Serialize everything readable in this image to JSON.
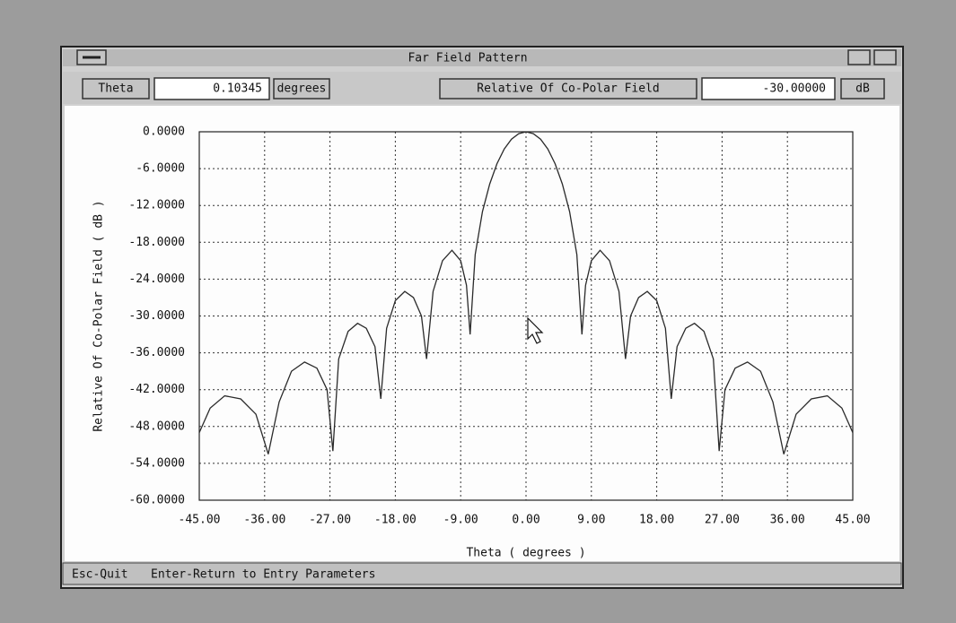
{
  "window": {
    "title": "Far Field Pattern"
  },
  "toolbar": {
    "theta_button": "Theta",
    "theta_field": "0.10345",
    "theta_unit": "degrees",
    "field_button": "Relative Of Co-Polar Field",
    "field_value": "-30.00000",
    "field_unit": "dB"
  },
  "status_bar": {
    "esc": "Esc-Quit",
    "enter": "Enter-Return to Entry Parameters"
  },
  "chart_data": {
    "type": "line",
    "x_label": "Theta ( degrees )",
    "y_label": "Relative Of Co-Polar Field ( dB )",
    "color": "#2a2a2a",
    "grid": true,
    "xlim": [
      -45,
      45
    ],
    "ylim": [
      -60,
      0
    ],
    "xticks": [
      {
        "value": -45,
        "label": "-45.00"
      },
      {
        "value": -36,
        "label": "-36.00"
      },
      {
        "value": -27,
        "label": "-27.00"
      },
      {
        "value": -18,
        "label": "-18.00"
      },
      {
        "value": -9,
        "label": "-9.00"
      },
      {
        "value": 0,
        "label": "0.00"
      },
      {
        "value": 9,
        "label": "9.00"
      },
      {
        "value": 18,
        "label": "18.00"
      },
      {
        "value": 27,
        "label": "27.00"
      },
      {
        "value": 36,
        "label": "36.00"
      },
      {
        "value": 45,
        "label": "45.00"
      }
    ],
    "yticks": [
      {
        "value": 0,
        "label": "0.0000"
      },
      {
        "value": -6,
        "label": "-6.0000"
      },
      {
        "value": -12,
        "label": "-12.0000"
      },
      {
        "value": -18,
        "label": "-18.0000"
      },
      {
        "value": -24,
        "label": "-24.0000"
      },
      {
        "value": -30,
        "label": "-30.0000"
      },
      {
        "value": -36,
        "label": "-36.0000"
      },
      {
        "value": -42,
        "label": "-42.0000"
      },
      {
        "value": -48,
        "label": "-48.0000"
      },
      {
        "value": -54,
        "label": "-54.0000"
      },
      {
        "value": -60,
        "label": "-60.0000"
      }
    ],
    "x": [
      -45,
      -43.5,
      -41.5,
      -39.3,
      -37.2,
      -35.5,
      -34,
      -32.3,
      -30.5,
      -28.8,
      -27.4,
      -26.6,
      -25.8,
      -24.5,
      -23.2,
      -22,
      -20.8,
      -20,
      -19.2,
      -18,
      -16.7,
      -15.5,
      -14.4,
      -13.7,
      -12.8,
      -11.5,
      -10.2,
      -9,
      -8.2,
      -7.7,
      -7,
      -6,
      -5,
      -4,
      -3,
      -2,
      -1,
      0,
      1,
      2,
      3,
      4,
      5,
      6,
      7,
      7.7,
      8.2,
      9,
      10.2,
      11.5,
      12.8,
      13.7,
      14.4,
      15.5,
      16.7,
      18,
      19.2,
      20,
      20.8,
      22,
      23.2,
      24.5,
      25.8,
      26.6,
      27.4,
      28.8,
      30.5,
      32.3,
      34,
      35.5,
      37.2,
      39.3,
      41.5,
      43.5,
      45
    ],
    "values": [
      -49,
      -45,
      -43,
      -43.5,
      -46,
      -52.5,
      -44,
      -39,
      -37.5,
      -38.5,
      -42,
      -52,
      -37,
      -32.5,
      -31.2,
      -32,
      -35,
      -43.5,
      -32,
      -27.5,
      -26,
      -27,
      -30,
      -37,
      -26,
      -21,
      -19.3,
      -21,
      -25,
      -33,
      -20,
      -13,
      -8.5,
      -5.2,
      -2.8,
      -1.2,
      -0.3,
      0,
      -0.3,
      -1.2,
      -2.8,
      -5.2,
      -8.5,
      -13,
      -20,
      -33,
      -25,
      -21,
      -19.3,
      -21,
      -26,
      -37,
      -30,
      -27,
      -26,
      -27.5,
      -32,
      -43.5,
      -35,
      -32,
      -31.2,
      -32.5,
      -37,
      -52,
      -42,
      -38.5,
      -37.5,
      -39,
      -44,
      -52.5,
      -46,
      -43.5,
      -43,
      -45,
      -49
    ]
  }
}
